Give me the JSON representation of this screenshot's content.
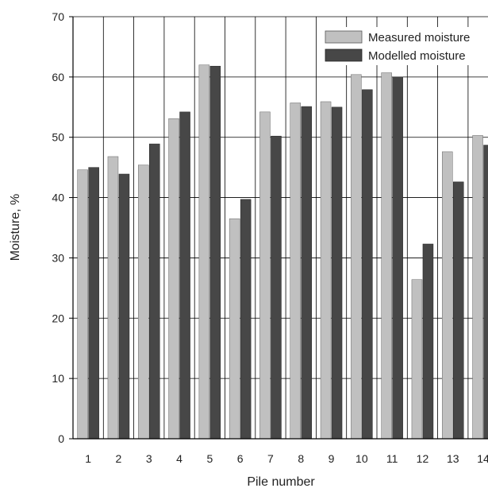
{
  "chart_data": {
    "type": "bar",
    "xlabel": "Pile number",
    "ylabel": "Moisture, %",
    "ylim": [
      0,
      70
    ],
    "yticks": [
      0,
      10,
      20,
      30,
      40,
      50,
      60,
      70
    ],
    "categories": [
      "1",
      "2",
      "3",
      "4",
      "5",
      "6",
      "7",
      "8",
      "9",
      "10",
      "11",
      "12",
      "13",
      "14"
    ],
    "series": [
      {
        "name": "Measured moisture",
        "color": "#c0c0c0",
        "values": [
          44.6,
          46.8,
          45.4,
          53.1,
          62.0,
          36.5,
          54.2,
          55.7,
          55.9,
          60.4,
          60.7,
          26.4,
          47.6,
          50.3
        ]
      },
      {
        "name": "Modelled moisture",
        "color": "#474747",
        "values": [
          45.0,
          43.9,
          48.9,
          54.2,
          61.8,
          39.7,
          50.2,
          55.1,
          55.0,
          57.9,
          60.0,
          32.3,
          42.6,
          48.7
        ]
      }
    ],
    "grid": true,
    "legend_position": "top-right"
  }
}
